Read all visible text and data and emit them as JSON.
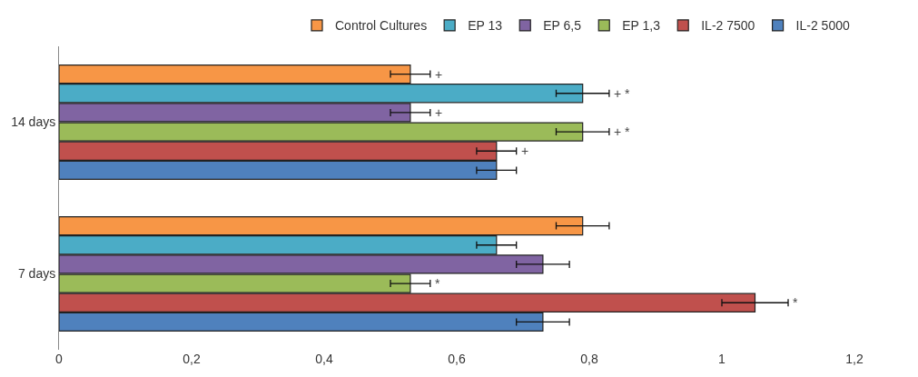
{
  "chart_data": {
    "type": "bar",
    "orientation": "horizontal",
    "categories": [
      "14 days",
      "7 days"
    ],
    "series": [
      {
        "name": "Control Cultures",
        "color": "#f79646",
        "values": [
          0.53,
          0.79
        ],
        "errors": [
          0.03,
          0.04
        ],
        "value_labels": [
          "+",
          null
        ]
      },
      {
        "name": "EP 13",
        "color": "#4bacc6",
        "values": [
          0.79,
          0.66
        ],
        "errors": [
          0.04,
          0.03
        ],
        "value_labels": [
          "+ *",
          null
        ]
      },
      {
        "name": "EP 6,5",
        "color": "#8064a2",
        "values": [
          0.53,
          0.73
        ],
        "errors": [
          0.03,
          0.04
        ],
        "value_labels": [
          "+",
          null
        ]
      },
      {
        "name": "EP 1,3",
        "color": "#9bbb59",
        "values": [
          0.79,
          0.53
        ],
        "errors": [
          0.04,
          0.03
        ],
        "value_labels": [
          "+ *",
          "*"
        ]
      },
      {
        "name": "IL-2 7500",
        "color": "#c0504d",
        "values": [
          0.66,
          1.05
        ],
        "errors": [
          0.03,
          0.05
        ],
        "value_labels": [
          "+",
          "*"
        ]
      },
      {
        "name": "IL-2 5000",
        "color": "#4f81bd",
        "values": [
          0.66,
          0.73
        ],
        "errors": [
          0.03,
          0.04
        ],
        "value_labels": [
          null,
          null
        ]
      }
    ],
    "xlim": [
      0,
      1.2
    ],
    "xticks": [
      0,
      {
        "value": 0.2,
        "label": "0,2"
      },
      {
        "value": 0.4,
        "label": "0,4"
      },
      {
        "value": 0.6,
        "label": "0,6"
      },
      {
        "value": 0.8,
        "label": "0,8"
      },
      1,
      {
        "value": 1.2,
        "label": "1,2"
      }
    ],
    "legend": "top"
  }
}
